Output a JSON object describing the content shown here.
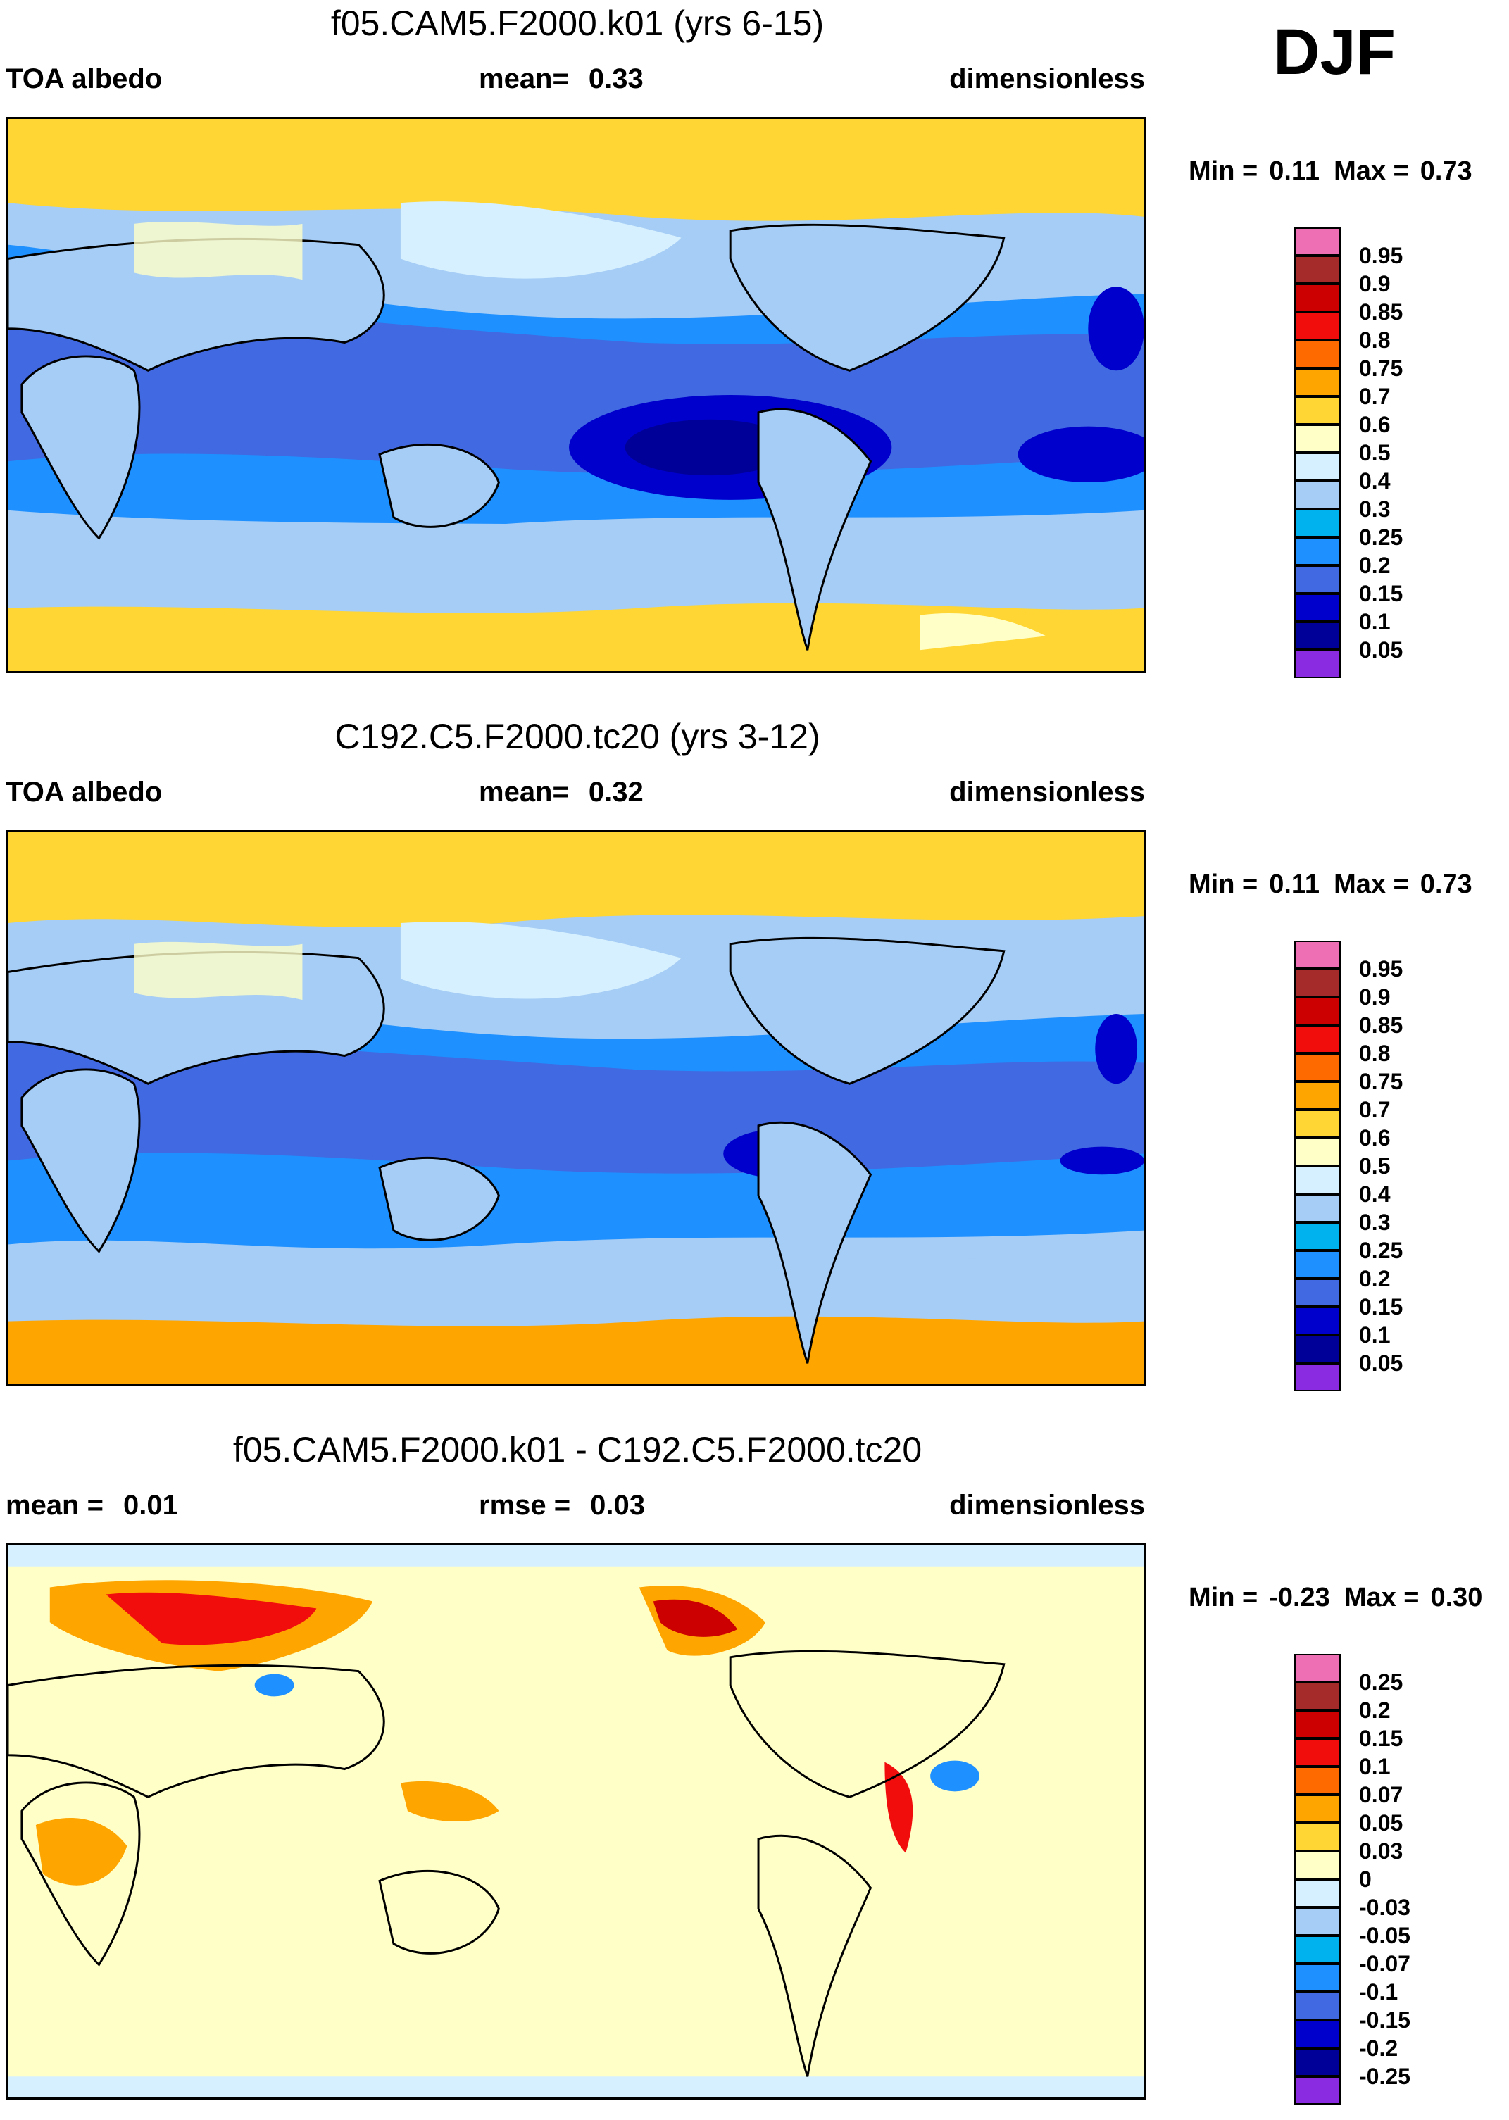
{
  "season": "DJF",
  "panels": [
    {
      "title": "f05.CAM5.F2000.k01 (yrs 6-15)",
      "left_label": "TOA albedo",
      "center_label": "mean=",
      "center_value": "0.33",
      "right_label": "dimensionless",
      "min_label": "Min =",
      "min_value": "0.11",
      "max_label": "Max =",
      "max_value": "0.73",
      "levels": [
        "0.95",
        "0.9",
        "0.85",
        "0.8",
        "0.75",
        "0.7",
        "0.6",
        "0.5",
        "0.4",
        "0.3",
        "0.25",
        "0.2",
        "0.15",
        "0.1",
        "0.05"
      ],
      "colors": [
        "#ef6fb5",
        "#a52a2a",
        "#cc0000",
        "#f20d0d",
        "#ff6a00",
        "#ffa500",
        "#ffd633",
        "#ffffc8",
        "#d6f0ff",
        "#a6cdf5",
        "#00b2ee",
        "#1e90ff",
        "#4169e1",
        "#0000cd",
        "#000098",
        "#8a2be2"
      ]
    },
    {
      "title": "C192.C5.F2000.tc20 (yrs 3-12)",
      "left_label": "TOA albedo",
      "center_label": "mean=",
      "center_value": "0.32",
      "right_label": "dimensionless",
      "min_label": "Min =",
      "min_value": "0.11",
      "max_label": "Max =",
      "max_value": "0.73",
      "levels": [
        "0.95",
        "0.9",
        "0.85",
        "0.8",
        "0.75",
        "0.7",
        "0.6",
        "0.5",
        "0.4",
        "0.3",
        "0.25",
        "0.2",
        "0.15",
        "0.1",
        "0.05"
      ],
      "colors": [
        "#ef6fb5",
        "#a52a2a",
        "#cc0000",
        "#f20d0d",
        "#ff6a00",
        "#ffa500",
        "#ffd633",
        "#ffffc8",
        "#d6f0ff",
        "#a6cdf5",
        "#00b2ee",
        "#1e90ff",
        "#4169e1",
        "#0000cd",
        "#000098",
        "#8a2be2"
      ]
    },
    {
      "title": "f05.CAM5.F2000.k01 - C192.C5.F2000.tc20",
      "left_label": "mean =",
      "left_value": "0.01",
      "center_label": "rmse =",
      "center_value": "0.03",
      "right_label": "dimensionless",
      "min_label": "Min =",
      "min_value": "-0.23",
      "max_label": "Max =",
      "max_value": "0.30",
      "levels": [
        "0.25",
        "0.2",
        "0.15",
        "0.1",
        "0.07",
        "0.05",
        "0.03",
        "0",
        "-0.03",
        "-0.05",
        "-0.07",
        "-0.1",
        "-0.15",
        "-0.2",
        "-0.25"
      ],
      "colors": [
        "#ef6fb5",
        "#a52a2a",
        "#cc0000",
        "#f20d0d",
        "#ff6a00",
        "#ffa500",
        "#ffd633",
        "#ffffc8",
        "#d6f0ff",
        "#a6cdf5",
        "#00b2ee",
        "#1e90ff",
        "#4169e1",
        "#0000cd",
        "#000098",
        "#8a2be2"
      ]
    }
  ]
}
